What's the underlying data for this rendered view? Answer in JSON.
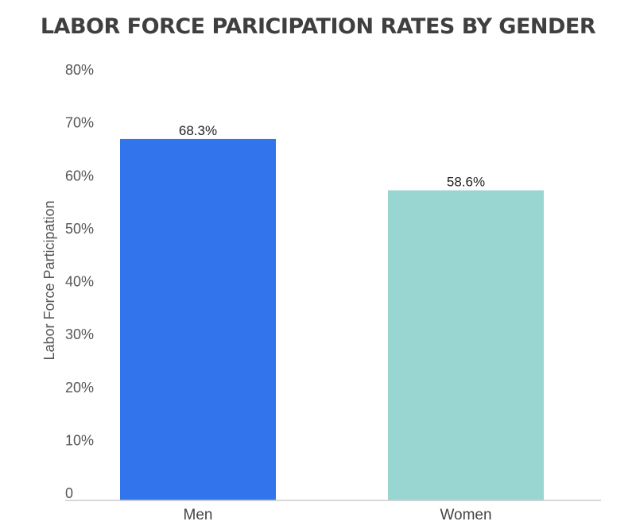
{
  "chart_data": {
    "type": "bar",
    "title": "LABOR FORCE PARICIPATION RATES BY GENDER",
    "xlabel": "",
    "ylabel": "Labor Force Participation",
    "categories": [
      "Men",
      "Women"
    ],
    "values": [
      68.3,
      58.6
    ],
    "data_labels": [
      "68.3%",
      "58.6%"
    ],
    "colors": [
      "#3274EB",
      "#9AD6D1"
    ],
    "ylim": [
      0,
      80
    ],
    "y_ticks": [
      0,
      10,
      20,
      30,
      40,
      50,
      60,
      70,
      80
    ],
    "y_tick_labels": [
      "0",
      "10%",
      "20%",
      "30%",
      "40%",
      "50%",
      "60%",
      "70%",
      "80%"
    ],
    "grid": false,
    "legend": "none"
  }
}
